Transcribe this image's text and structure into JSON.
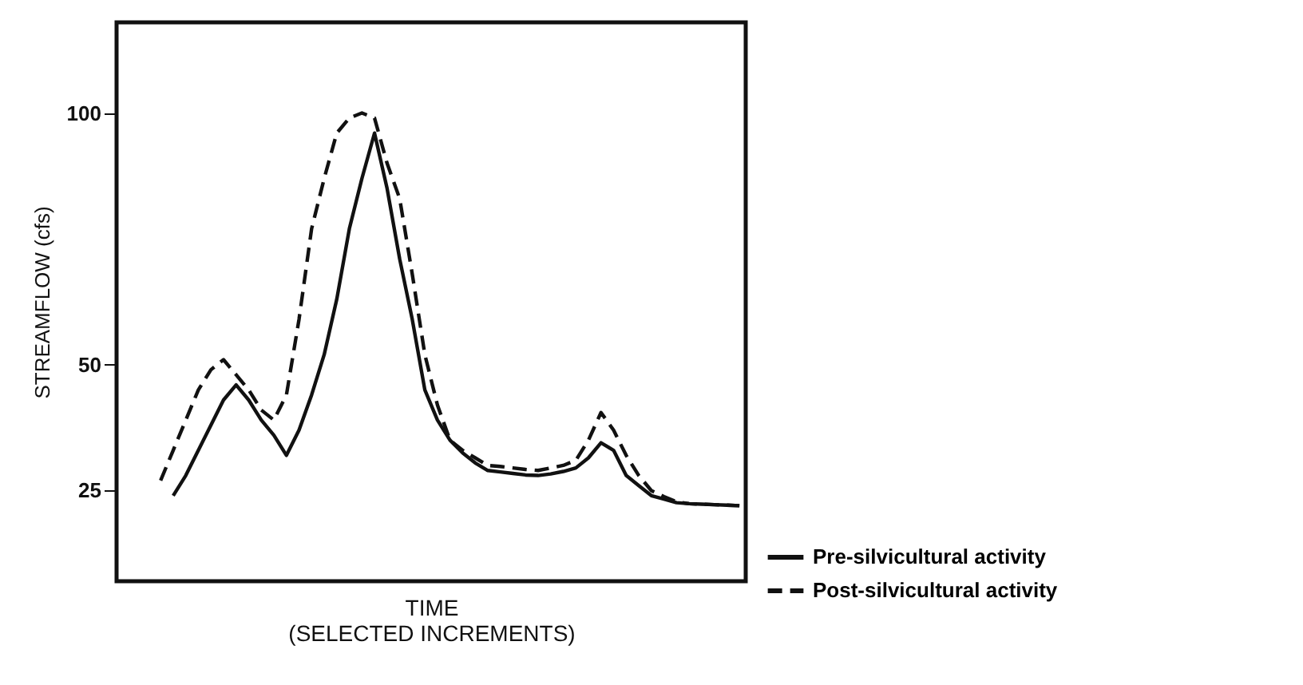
{
  "chart_data": {
    "type": "line",
    "ylabel": "STREAMFLOW (cfs)",
    "xlabel": "TIME\n(SELECTED INCREMENTS)",
    "ylim": [
      7,
      118
    ],
    "yticks": [
      25,
      50,
      100
    ],
    "tick_labels": "y",
    "grid": false,
    "legend": "bottom right",
    "marker": "none",
    "categories": [
      null,
      null,
      null,
      null,
      null,
      null,
      null,
      null,
      null,
      null,
      null,
      null,
      null,
      null,
      null,
      null,
      null,
      null,
      null,
      null,
      null,
      null,
      null,
      null,
      null,
      null,
      null,
      null,
      null,
      null,
      null,
      null,
      null,
      null,
      null,
      null,
      null,
      null,
      null,
      null,
      null,
      null,
      null,
      null,
      null,
      null,
      null,
      null,
      null,
      null
    ],
    "series": [
      {
        "name": "Pre-silvicultural activity",
        "color": "#111111",
        "line_style": "solid",
        "values": [
          null,
          null,
          null,
          null,
          24,
          28,
          33,
          38,
          43,
          46,
          43,
          39,
          36,
          32,
          37,
          44,
          52,
          63,
          77,
          87,
          96,
          85,
          71,
          59,
          45,
          39,
          35,
          32.5,
          30.5,
          29,
          28.7,
          28.4,
          28.1,
          28,
          28.3,
          28.8,
          29.5,
          31.5,
          34.5,
          33,
          28,
          26,
          24,
          23.3,
          22.6,
          22.4,
          22.3,
          22.2,
          22.1,
          22
        ]
      },
      {
        "name": "Post-silvicultural activity",
        "color": "#111111",
        "line_style": "dashed",
        "values": [
          null,
          null,
          null,
          27,
          33,
          39,
          45,
          49,
          51,
          48,
          45,
          41,
          39,
          44,
          59,
          77,
          87,
          96,
          99,
          100,
          99,
          90,
          83,
          68,
          52,
          42,
          35,
          33,
          31.5,
          30,
          29.8,
          29.5,
          29.2,
          29,
          29.5,
          30,
          31,
          35,
          40.5,
          37,
          32,
          28,
          25,
          23.8,
          22.8,
          22.4,
          22.3,
          22.2,
          22.1,
          22
        ]
      }
    ]
  }
}
